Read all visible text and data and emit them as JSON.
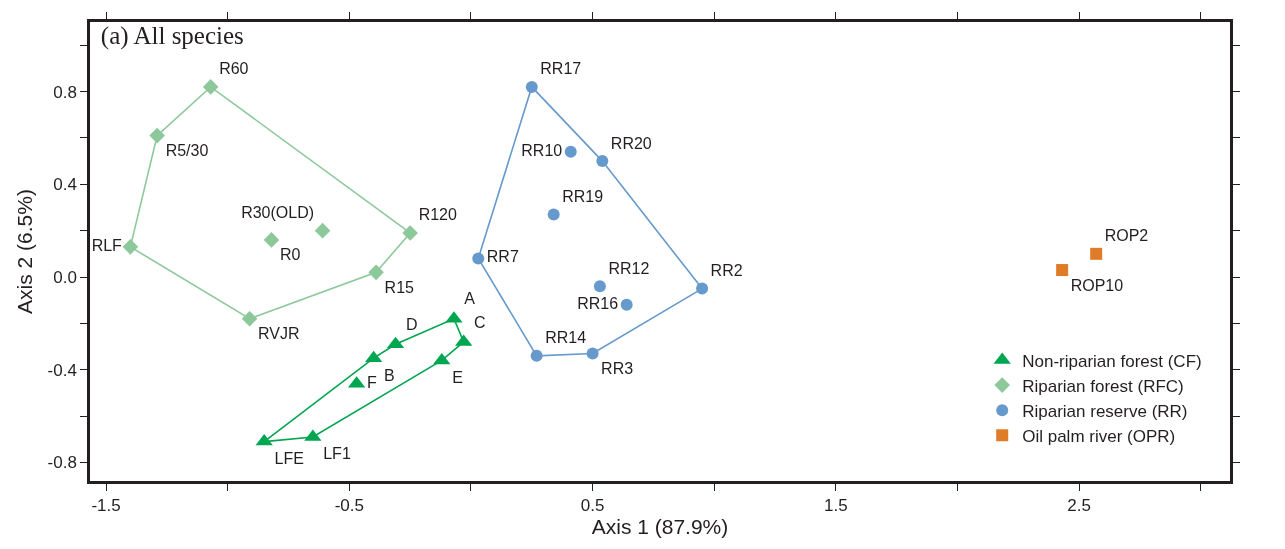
{
  "chart_data": {
    "type": "scatter",
    "title": "(a) All species",
    "xlabel": "Axis 1 (87.9%)",
    "ylabel": "Axis 2 (6.5%)",
    "xlim": [
      -1.566,
      3.12
    ],
    "ylim": [
      -0.88,
      1.1
    ],
    "xticks": [
      -1.5,
      {
        "value": -1,
        "label": null
      },
      -0.5,
      {
        "value": 0,
        "label": null
      },
      0.5,
      {
        "value": 1,
        "label": null
      },
      1.5,
      {
        "value": 2,
        "label": null
      },
      2.5,
      {
        "value": 3,
        "label": null
      }
    ],
    "yticks": [
      {
        "value": -0.8,
        "label": "-0.8"
      },
      {
        "value": -0.6,
        "label": null
      },
      -0.4,
      {
        "value": -0.2,
        "label": null
      },
      {
        "value": 0,
        "label": "0.0"
      },
      {
        "value": 0.2,
        "label": null
      },
      0.4,
      {
        "value": 0.6,
        "label": null
      },
      0.8,
      {
        "value": 1,
        "label": null
      }
    ],
    "grid": false,
    "legend": "bottom right",
    "series": [
      {
        "name": "Non-riparian forest (CF)",
        "color": "#00a650",
        "marker": "triangle",
        "x": [
          -0.07,
          -0.03,
          -0.4,
          -0.31,
          -0.12,
          -0.47,
          -0.85,
          -0.65
        ],
        "values": [
          -0.18,
          -0.28,
          -0.35,
          -0.29,
          -0.36,
          -0.46,
          -0.71,
          -0.69
        ],
        "value_labels": [
          "A",
          "C",
          "B",
          "D",
          "E",
          "F",
          "LFE",
          "LF1"
        ]
      },
      {
        "name": "Riparian forest (RFC)",
        "color": "#8dc89b",
        "marker": "diamond",
        "x": [
          -1.07,
          -1.29,
          -1.4,
          -0.91,
          -0.39,
          -0.25,
          -0.61,
          -0.82
        ],
        "values": [
          0.82,
          0.61,
          0.13,
          -0.18,
          0.02,
          0.19,
          0.2,
          0.16
        ],
        "value_labels": [
          "R60",
          "R5/30",
          "RLF",
          "RVJR",
          "R15",
          "R120",
          "R30(OLD)",
          "R0"
        ]
      },
      {
        "name": "Riparian reserve (RR)",
        "color": "#6699cc",
        "marker": "circle",
        "x": [
          0.25,
          0.41,
          0.54,
          0.34,
          0.03,
          0.53,
          0.64,
          0.95,
          0.27,
          0.5
        ],
        "values": [
          0.82,
          0.54,
          0.5,
          0.27,
          0.08,
          -0.04,
          -0.12,
          -0.05,
          -0.34,
          -0.33
        ],
        "value_labels": [
          "RR17",
          "RR10",
          "RR20",
          "RR19",
          "RR7",
          "RR12",
          "RR16",
          "RR2",
          "RR14",
          "RR3"
        ]
      },
      {
        "name": "Oil palm river (OPR)",
        "color": "#e07b28",
        "marker": "square",
        "x": [
          2.43,
          2.57
        ],
        "values": [
          0.03,
          0.1
        ],
        "value_labels": [
          "ROP10",
          "ROP2"
        ]
      },
      {
        "type": "line",
        "color": "#00a650",
        "marker": "none",
        "x": [
          -0.85,
          -0.4,
          -0.31,
          -0.07,
          -0.03
        ],
        "values": [
          -0.71,
          -0.35,
          -0.29,
          -0.18,
          -0.28
        ]
      },
      {
        "type": "line",
        "color": "#00a650",
        "marker": "none",
        "x": [
          -0.85,
          -0.65,
          -0.12,
          -0.03
        ],
        "values": [
          -0.71,
          -0.69,
          -0.36,
          -0.28
        ]
      },
      {
        "type": "line",
        "color": "#8dc89b",
        "marker": "none",
        "x": [
          -1.4,
          -1.29,
          -1.07,
          -0.25
        ],
        "values": [
          0.13,
          0.61,
          0.82,
          0.19
        ]
      },
      {
        "type": "line",
        "color": "#8dc89b",
        "marker": "none",
        "x": [
          -1.4,
          -0.91,
          -0.39,
          -0.25
        ],
        "values": [
          0.13,
          -0.18,
          0.02,
          0.19
        ]
      },
      {
        "type": "line",
        "color": "#6699cc",
        "marker": "none",
        "x": [
          0.03,
          0.25,
          0.54,
          0.95
        ],
        "values": [
          0.08,
          0.82,
          0.5,
          -0.05
        ]
      },
      {
        "type": "line",
        "color": "#6699cc",
        "marker": "none",
        "x": [
          0.03,
          0.27,
          0.5,
          0.95
        ],
        "values": [
          0.08,
          -0.34,
          -0.33,
          -0.05
        ]
      }
    ]
  }
}
